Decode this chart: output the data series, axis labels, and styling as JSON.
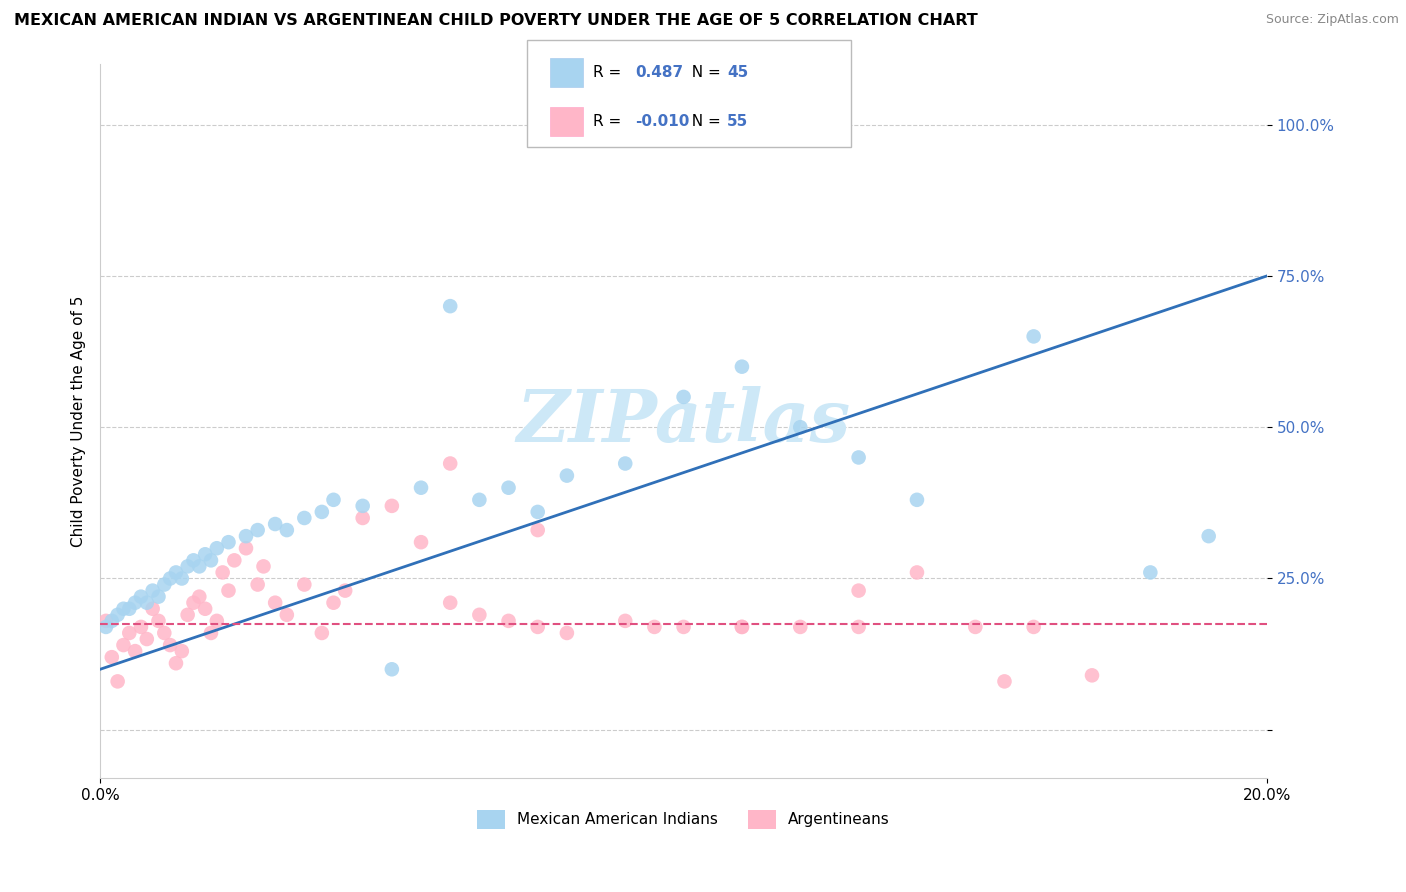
{
  "title": "MEXICAN AMERICAN INDIAN VS ARGENTINEAN CHILD POVERTY UNDER THE AGE OF 5 CORRELATION CHART",
  "source": "Source: ZipAtlas.com",
  "ylabel": "Child Poverty Under the Age of 5",
  "xlim": [
    0.0,
    0.2
  ],
  "ylim": [
    -0.08,
    1.1
  ],
  "yticks": [
    0.0,
    0.25,
    0.5,
    0.75,
    1.0
  ],
  "ytick_labels": [
    "",
    "25.0%",
    "50.0%",
    "75.0%",
    "100.0%"
  ],
  "legend_r_blue": "0.487",
  "legend_n_blue": "45",
  "legend_r_pink": "-0.010",
  "legend_n_pink": "55",
  "legend_label_blue": "Mexican American Indians",
  "legend_label_pink": "Argentineans",
  "blue_color": "#a8d4f0",
  "pink_color": "#ffb6c8",
  "line_blue": "#3070b8",
  "line_pink": "#e05080",
  "watermark_color": "#cde8f7",
  "blue_scatter_x": [
    0.001,
    0.002,
    0.003,
    0.004,
    0.005,
    0.006,
    0.007,
    0.008,
    0.009,
    0.01,
    0.011,
    0.012,
    0.013,
    0.014,
    0.015,
    0.016,
    0.017,
    0.018,
    0.019,
    0.02,
    0.022,
    0.025,
    0.027,
    0.03,
    0.032,
    0.035,
    0.038,
    0.04,
    0.045,
    0.05,
    0.055,
    0.06,
    0.065,
    0.07,
    0.075,
    0.08,
    0.09,
    0.1,
    0.11,
    0.12,
    0.13,
    0.14,
    0.16,
    0.18,
    0.19
  ],
  "blue_scatter_y": [
    0.17,
    0.18,
    0.19,
    0.2,
    0.2,
    0.21,
    0.22,
    0.21,
    0.23,
    0.22,
    0.24,
    0.25,
    0.26,
    0.25,
    0.27,
    0.28,
    0.27,
    0.29,
    0.28,
    0.3,
    0.31,
    0.32,
    0.33,
    0.34,
    0.33,
    0.35,
    0.36,
    0.38,
    0.37,
    0.1,
    0.4,
    0.7,
    0.38,
    0.4,
    0.36,
    0.42,
    0.44,
    0.55,
    0.6,
    0.5,
    0.45,
    0.38,
    0.65,
    0.26,
    0.32
  ],
  "pink_scatter_x": [
    0.001,
    0.002,
    0.003,
    0.004,
    0.005,
    0.006,
    0.007,
    0.008,
    0.009,
    0.01,
    0.011,
    0.012,
    0.013,
    0.014,
    0.015,
    0.016,
    0.017,
    0.018,
    0.019,
    0.02,
    0.021,
    0.022,
    0.023,
    0.025,
    0.027,
    0.028,
    0.03,
    0.032,
    0.035,
    0.038,
    0.04,
    0.042,
    0.045,
    0.05,
    0.055,
    0.06,
    0.065,
    0.07,
    0.075,
    0.08,
    0.09,
    0.095,
    0.1,
    0.11,
    0.12,
    0.13,
    0.14,
    0.15,
    0.16,
    0.17,
    0.06,
    0.075,
    0.11,
    0.13,
    0.155
  ],
  "pink_scatter_y": [
    0.18,
    0.12,
    0.08,
    0.14,
    0.16,
    0.13,
    0.17,
    0.15,
    0.2,
    0.18,
    0.16,
    0.14,
    0.11,
    0.13,
    0.19,
    0.21,
    0.22,
    0.2,
    0.16,
    0.18,
    0.26,
    0.23,
    0.28,
    0.3,
    0.24,
    0.27,
    0.21,
    0.19,
    0.24,
    0.16,
    0.21,
    0.23,
    0.35,
    0.37,
    0.31,
    0.21,
    0.19,
    0.18,
    0.17,
    0.16,
    0.18,
    0.17,
    0.17,
    0.17,
    0.17,
    0.17,
    0.26,
    0.17,
    0.17,
    0.09,
    0.44,
    0.33,
    0.17,
    0.23,
    0.08
  ],
  "blue_line_x0": 0.0,
  "blue_line_y0": 0.1,
  "blue_line_x1": 0.2,
  "blue_line_y1": 0.75,
  "pink_line_x0": 0.0,
  "pink_line_y0": 0.175,
  "pink_line_x1": 0.2,
  "pink_line_y1": 0.175
}
